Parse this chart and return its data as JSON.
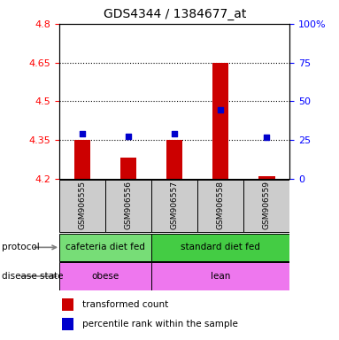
{
  "title": "GDS4344 / 1384677_at",
  "samples": [
    "GSM906555",
    "GSM906556",
    "GSM906557",
    "GSM906558",
    "GSM906559"
  ],
  "bar_values": [
    4.35,
    4.28,
    4.35,
    4.65,
    4.21
  ],
  "bar_base": 4.2,
  "blue_dot_values": [
    4.375,
    4.365,
    4.375,
    4.465,
    4.36
  ],
  "ylim": [
    4.2,
    4.8
  ],
  "yticks": [
    4.2,
    4.35,
    4.5,
    4.65,
    4.8
  ],
  "ytick_labels": [
    "4.2",
    "4.35",
    "4.5",
    "4.65",
    "4.8"
  ],
  "y2ticks": [
    0,
    25,
    50,
    75,
    100
  ],
  "y2tick_labels": [
    "0",
    "25",
    "50",
    "75",
    "100%"
  ],
  "dotted_lines": [
    4.35,
    4.5,
    4.65
  ],
  "bar_color": "#cc0000",
  "blue_dot_color": "#0000cc",
  "protocol_groups": [
    {
      "label": "cafeteria diet fed",
      "start": 0,
      "end": 2,
      "color": "#77dd77"
    },
    {
      "label": "standard diet fed",
      "start": 2,
      "end": 5,
      "color": "#44cc44"
    }
  ],
  "disease_groups": [
    {
      "label": "obese",
      "start": 0,
      "end": 2,
      "color": "#ee77ee"
    },
    {
      "label": "lean",
      "start": 2,
      "end": 5,
      "color": "#ee77ee"
    }
  ],
  "sample_bg_color": "#cccccc",
  "legend_red_label": "transformed count",
  "legend_blue_label": "percentile rank within the sample",
  "protocol_row_label": "protocol",
  "disease_row_label": "disease state",
  "bar_width": 0.35
}
